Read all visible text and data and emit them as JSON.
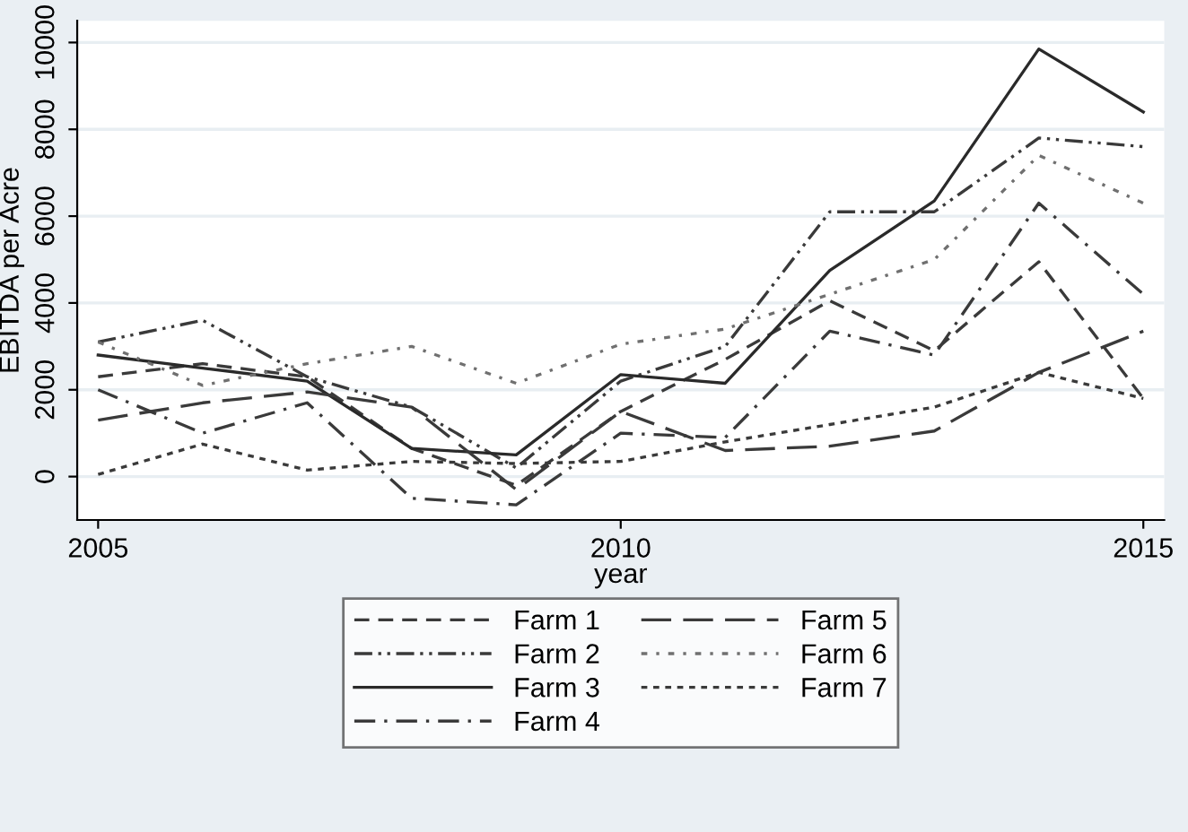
{
  "chart_data": {
    "type": "line",
    "xlabel": "year",
    "ylabel": "EBITDA per Acre",
    "x": [
      2005,
      2006,
      2007,
      2008,
      2009,
      2010,
      2011,
      2012,
      2013,
      2014,
      2015
    ],
    "series": [
      {
        "name": "Farm 1",
        "color": "#3a3a3a",
        "line_style": "dashed",
        "values": [
          2300,
          2600,
          2300,
          650,
          -200,
          1500,
          2700,
          4050,
          2900,
          4950,
          1800
        ]
      },
      {
        "name": "Farm 2",
        "color": "#3a3a3a",
        "line_style": "dashdotdot",
        "values": [
          3100,
          3600,
          2300,
          1600,
          200,
          2200,
          3000,
          6100,
          6100,
          7800,
          7600
        ]
      },
      {
        "name": "Farm 3",
        "color": "#2a2a2a",
        "line_style": "solid",
        "values": [
          2800,
          2500,
          2200,
          650,
          500,
          2350,
          2150,
          4750,
          6350,
          9850,
          8400
        ]
      },
      {
        "name": "Farm 4",
        "color": "#3a3a3a",
        "line_style": "dashdot",
        "values": [
          2000,
          1000,
          1700,
          -500,
          -650,
          1000,
          900,
          3350,
          2800,
          6300,
          4200
        ]
      },
      {
        "name": "Farm 5",
        "color": "#3a3a3a",
        "line_style": "longdash",
        "values": [
          1300,
          1700,
          1950,
          1600,
          -300,
          1500,
          600,
          700,
          1050,
          2400,
          3350
        ]
      },
      {
        "name": "Farm 6",
        "color": "#707070",
        "line_style": "dashdotdot_light",
        "values": [
          3100,
          2100,
          2600,
          3000,
          2150,
          3050,
          3400,
          4200,
          5000,
          7400,
          6300
        ]
      },
      {
        "name": "Farm 7",
        "color": "#3a3a3a",
        "line_style": "dotted",
        "values": [
          50,
          750,
          150,
          350,
          300,
          350,
          800,
          1200,
          1600,
          2400,
          1800
        ]
      }
    ],
    "xlim": [
      2004.8,
      2015.2
    ],
    "xticks": [
      2005,
      2010,
      2015
    ],
    "ylim": [
      -1000,
      10500
    ],
    "yticks": [
      0,
      2000,
      4000,
      6000,
      8000,
      10000
    ],
    "grid": "y",
    "legend": "bottom"
  }
}
